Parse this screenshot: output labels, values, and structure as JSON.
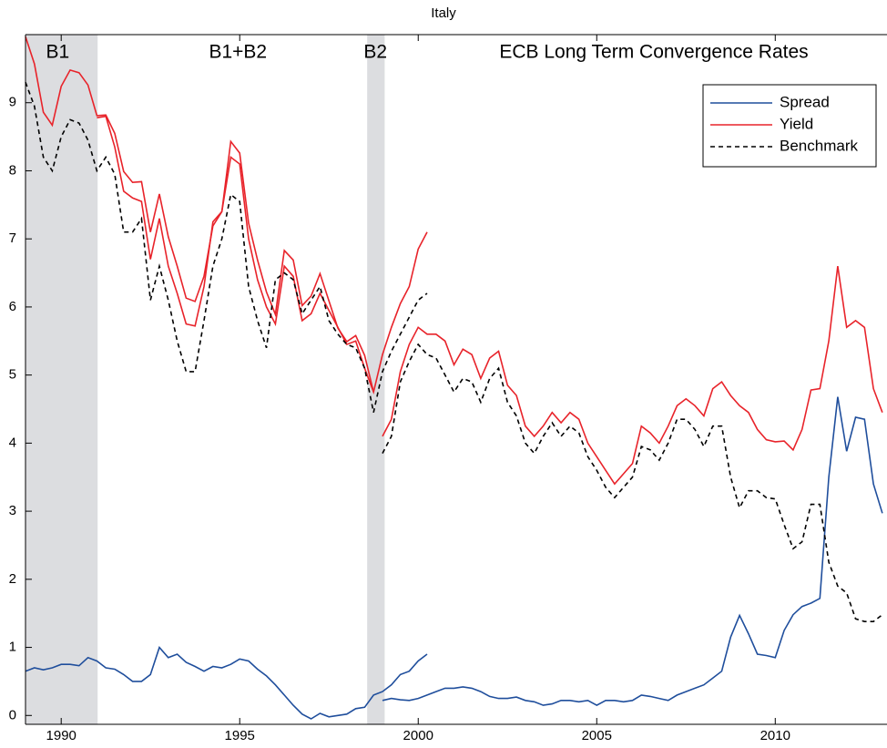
{
  "chart_data": {
    "type": "line",
    "title": "Italy",
    "xlim": [
      1989,
      2013.13
    ],
    "ylim": [
      -0.13,
      10
    ],
    "xticks": [
      1990,
      1995,
      2000,
      2005,
      2010
    ],
    "yticks": [
      0,
      1,
      2,
      3,
      4,
      5,
      6,
      7,
      8,
      9
    ],
    "legend": "upper right",
    "shaded": [
      {
        "start": 1989,
        "end": 1991.02,
        "color": "#dcdde0"
      },
      {
        "start": 1998.57,
        "end": 1999.06,
        "color": "#dcdde0"
      }
    ],
    "annotations": [
      {
        "text": "B1",
        "x": 1989.9
      },
      {
        "text": "B1+B2",
        "x": 1994.95
      },
      {
        "text": "B2",
        "x": 1998.8
      },
      {
        "text": "ECB Long Term Convergence Rates",
        "x": 2006.6
      }
    ],
    "series": [
      {
        "name": "Spread",
        "color": "#1f4e9c",
        "dash": false,
        "segments": [
          {
            "x": [
              1989,
              1989.25,
              1989.5,
              1989.75,
              1990,
              1990.25,
              1990.5,
              1990.75,
              1991,
              1991.25,
              1991.5,
              1991.75,
              1992,
              1992.25,
              1992.5,
              1992.75,
              1993,
              1993.25,
              1993.5,
              1993.75,
              1994,
              1994.25,
              1994.5,
              1994.75,
              1995,
              1995.25,
              1995.5,
              1995.75,
              1996,
              1996.25,
              1996.5,
              1996.75,
              1997,
              1997.25,
              1997.5,
              1997.75,
              1998,
              1998.25,
              1998.5,
              1998.75,
              1999,
              1999.25,
              1999.5,
              1999.75,
              2000,
              2000.25
            ],
            "values": [
              0.65,
              0.7,
              0.67,
              0.7,
              0.75,
              0.75,
              0.73,
              0.85,
              0.8,
              0.7,
              0.68,
              0.6,
              0.5,
              0.5,
              0.6,
              1.0,
              0.85,
              0.9,
              0.78,
              0.72,
              0.65,
              0.72,
              0.7,
              0.75,
              0.83,
              0.8,
              0.68,
              0.58,
              0.45,
              0.3,
              0.15,
              0.02,
              -0.05,
              0.03,
              -0.02,
              0,
              0.02,
              0.1,
              0.12,
              0.3,
              0.35,
              0.45,
              0.6,
              0.65,
              0.8,
              0.9
            ]
          },
          {
            "x": [
              1999,
              1999.25,
              1999.5,
              1999.75,
              2000,
              2000.25,
              2000.5,
              2000.75,
              2001,
              2001.25,
              2001.5,
              2001.75,
              2002,
              2002.25,
              2002.5,
              2002.75,
              2003,
              2003.25,
              2003.5,
              2003.75,
              2004,
              2004.25,
              2004.5,
              2004.75,
              2005,
              2005.25,
              2005.5,
              2005.75,
              2006,
              2006.25,
              2006.5,
              2006.75,
              2007,
              2007.25,
              2007.5,
              2007.75,
              2008,
              2008.25,
              2008.5,
              2008.75,
              2009,
              2009.25,
              2009.5,
              2009.75,
              2010,
              2010.25,
              2010.5,
              2010.75,
              2011,
              2011.25,
              2011.5,
              2011.75,
              2012,
              2012.25,
              2012.5,
              2012.75,
              2013
            ],
            "values": [
              0.22,
              0.25,
              0.23,
              0.22,
              0.25,
              0.3,
              0.35,
              0.4,
              0.4,
              0.42,
              0.4,
              0.35,
              0.28,
              0.25,
              0.25,
              0.27,
              0.22,
              0.2,
              0.15,
              0.17,
              0.22,
              0.22,
              0.2,
              0.22,
              0.15,
              0.22,
              0.22,
              0.2,
              0.22,
              0.3,
              0.28,
              0.25,
              0.22,
              0.3,
              0.35,
              0.4,
              0.45,
              0.55,
              0.65,
              1.15,
              1.47,
              1.2,
              0.9,
              0.88,
              0.85,
              1.25,
              1.48,
              1.6,
              1.65,
              1.72,
              3.5,
              4.68,
              3.88,
              4.38,
              4.35,
              3.4,
              2.97
            ]
          }
        ]
      },
      {
        "name": "Yield",
        "color": "#e8232a",
        "dash": false,
        "segments": [
          {
            "x": [
              1989,
              1989.25,
              1989.5,
              1989.75,
              1990,
              1990.25,
              1990.5,
              1990.75,
              1991,
              1991.25,
              1991.5,
              1991.75,
              1992,
              1992.25,
              1992.5,
              1992.75,
              1993,
              1993.25,
              1993.5,
              1993.75,
              1994,
              1994.25,
              1994.5,
              1994.75,
              1995,
              1995.25,
              1995.5,
              1995.75,
              1996,
              1996.25,
              1996.5,
              1996.75,
              1997,
              1997.25,
              1997.5,
              1997.75,
              1998,
              1998.25,
              1998.5,
              1998.75
            ],
            "values": [
              9.97,
              9.57,
              8.86,
              8.67,
              9.24,
              9.48,
              9.44,
              9.26,
              8.81,
              8.82,
              8.55,
              7.99,
              7.83,
              7.84,
              7.1,
              7.66,
              7.03,
              6.6,
              6.13,
              6.08,
              6.45,
              7.19,
              7.4,
              8.43,
              8.26,
              7.23,
              6.69,
              6.22,
              5.89,
              6.83,
              6.69,
              6.02,
              6.16,
              6.49,
              6.09,
              5.69,
              5.49,
              5.58,
              5.29,
              4.75
            ]
          },
          {
            "x": [
              1991,
              1991.25,
              1991.5,
              1991.75,
              1992,
              1992.25,
              1992.5,
              1992.75,
              1993,
              1993.25,
              1993.5,
              1993.75,
              1994,
              1994.25,
              1994.5,
              1994.75,
              1995,
              1995.25,
              1995.5,
              1995.75,
              1996,
              1996.25,
              1996.5,
              1996.75,
              1997,
              1997.25,
              1997.5,
              1997.75,
              1998,
              1998.25,
              1998.5,
              1998.75,
              1999,
              1999.25,
              1999.5,
              1999.75,
              2000,
              2000.25
            ],
            "values": [
              8.78,
              8.8,
              8.35,
              7.7,
              7.6,
              7.55,
              6.7,
              7.3,
              6.6,
              6.2,
              5.75,
              5.72,
              6.3,
              7.25,
              7.4,
              8.2,
              8.1,
              7.0,
              6.4,
              6.0,
              5.75,
              6.6,
              6.45,
              5.8,
              5.9,
              6.2,
              5.95,
              5.7,
              5.45,
              5.5,
              5.1,
              4.75,
              5.3,
              5.7,
              6.05,
              6.3,
              6.85,
              7.1
            ]
          },
          {
            "x": [
              1999,
              1999.25,
              1999.5,
              1999.75,
              2000,
              2000.25,
              2000.5,
              2000.75,
              2001,
              2001.25,
              2001.5,
              2001.75,
              2002,
              2002.25,
              2002.5,
              2002.75,
              2003,
              2003.25,
              2003.5,
              2003.75,
              2004,
              2004.25,
              2004.5,
              2004.75,
              2005,
              2005.25,
              2005.5,
              2005.75,
              2006,
              2006.25,
              2006.5,
              2006.75,
              2007,
              2007.25,
              2007.5,
              2007.75,
              2008,
              2008.25,
              2008.5,
              2008.75,
              2009,
              2009.25,
              2009.5,
              2009.75,
              2010,
              2010.25,
              2010.5,
              2010.75,
              2011,
              2011.25,
              2011.5,
              2011.75,
              2012,
              2012.25,
              2012.5,
              2012.75,
              2013
            ],
            "values": [
              4.1,
              4.35,
              5.05,
              5.45,
              5.7,
              5.6,
              5.6,
              5.5,
              5.15,
              5.38,
              5.3,
              4.95,
              5.25,
              5.35,
              4.85,
              4.7,
              4.25,
              4.1,
              4.25,
              4.45,
              4.3,
              4.45,
              4.35,
              4.0,
              3.8,
              3.6,
              3.4,
              3.55,
              3.7,
              4.25,
              4.15,
              4.0,
              4.25,
              4.55,
              4.65,
              4.55,
              4.4,
              4.8,
              4.9,
              4.7,
              4.55,
              4.45,
              4.2,
              4.05,
              4.02,
              4.03,
              3.9,
              4.2,
              4.78,
              4.8,
              5.5,
              6.6,
              5.7,
              5.8,
              5.7,
              4.8,
              4.45
            ]
          }
        ]
      },
      {
        "name": "Benchmark",
        "color": "#000000",
        "dash": true,
        "segments": [
          {
            "x": [
              1989,
              1989.25,
              1989.5,
              1989.75,
              1990,
              1990.25,
              1990.5,
              1990.75,
              1991,
              1991.25,
              1991.5,
              1991.75,
              1992,
              1992.25,
              1992.5,
              1992.75,
              1993,
              1993.25,
              1993.5,
              1993.75,
              1994,
              1994.25,
              1994.5,
              1994.75,
              1995,
              1995.25,
              1995.5,
              1995.75,
              1996,
              1996.25,
              1996.5,
              1996.75,
              1997,
              1997.25,
              1997.5,
              1997.75,
              1998,
              1998.25,
              1998.5,
              1998.75,
              1999,
              1999.25,
              1999.5,
              1999.75,
              2000,
              2000.25
            ],
            "values": [
              9.3,
              8.95,
              8.2,
              8.0,
              8.5,
              8.75,
              8.7,
              8.45,
              8.0,
              8.2,
              7.95,
              7.1,
              7.1,
              7.3,
              6.1,
              6.6,
              6.1,
              5.5,
              5.05,
              5.05,
              5.8,
              6.6,
              7.0,
              7.65,
              7.55,
              6.3,
              5.8,
              5.4,
              6.4,
              6.5,
              6.4,
              5.9,
              6.1,
              6.3,
              5.8,
              5.6,
              5.45,
              5.4,
              5.1,
              4.45,
              5.05,
              5.35,
              5.6,
              5.85,
              6.1,
              6.2
            ]
          },
          {
            "x": [
              1999,
              1999.25,
              1999.5,
              1999.75,
              2000,
              2000.25,
              2000.5,
              2000.75,
              2001,
              2001.25,
              2001.5,
              2001.75,
              2002,
              2002.25,
              2002.5,
              2002.75,
              2003,
              2003.25,
              2003.5,
              2003.75,
              2004,
              2004.25,
              2004.5,
              2004.75,
              2005,
              2005.25,
              2005.5,
              2005.75,
              2006,
              2006.25,
              2006.5,
              2006.75,
              2007,
              2007.25,
              2007.5,
              2007.75,
              2008,
              2008.25,
              2008.5,
              2008.75,
              2009,
              2009.25,
              2009.5,
              2009.75,
              2010,
              2010.25,
              2010.5,
              2010.75,
              2011,
              2011.25,
              2011.5,
              2011.75,
              2012,
              2012.25,
              2012.5,
              2012.75,
              2013
            ],
            "values": [
              3.85,
              4.1,
              4.9,
              5.2,
              5.45,
              5.3,
              5.25,
              5.0,
              4.75,
              4.95,
              4.9,
              4.6,
              4.95,
              5.1,
              4.6,
              4.4,
              4.0,
              3.85,
              4.1,
              4.3,
              4.1,
              4.25,
              4.15,
              3.8,
              3.6,
              3.35,
              3.2,
              3.35,
              3.5,
              3.95,
              3.9,
              3.75,
              4.0,
              4.35,
              4.35,
              4.2,
              3.95,
              4.25,
              4.25,
              3.5,
              3.05,
              3.3,
              3.3,
              3.2,
              3.18,
              2.8,
              2.45,
              2.55,
              3.1,
              3.1,
              2.25,
              1.9,
              1.8,
              1.42,
              1.38,
              1.38,
              1.48
            ]
          }
        ]
      }
    ]
  }
}
